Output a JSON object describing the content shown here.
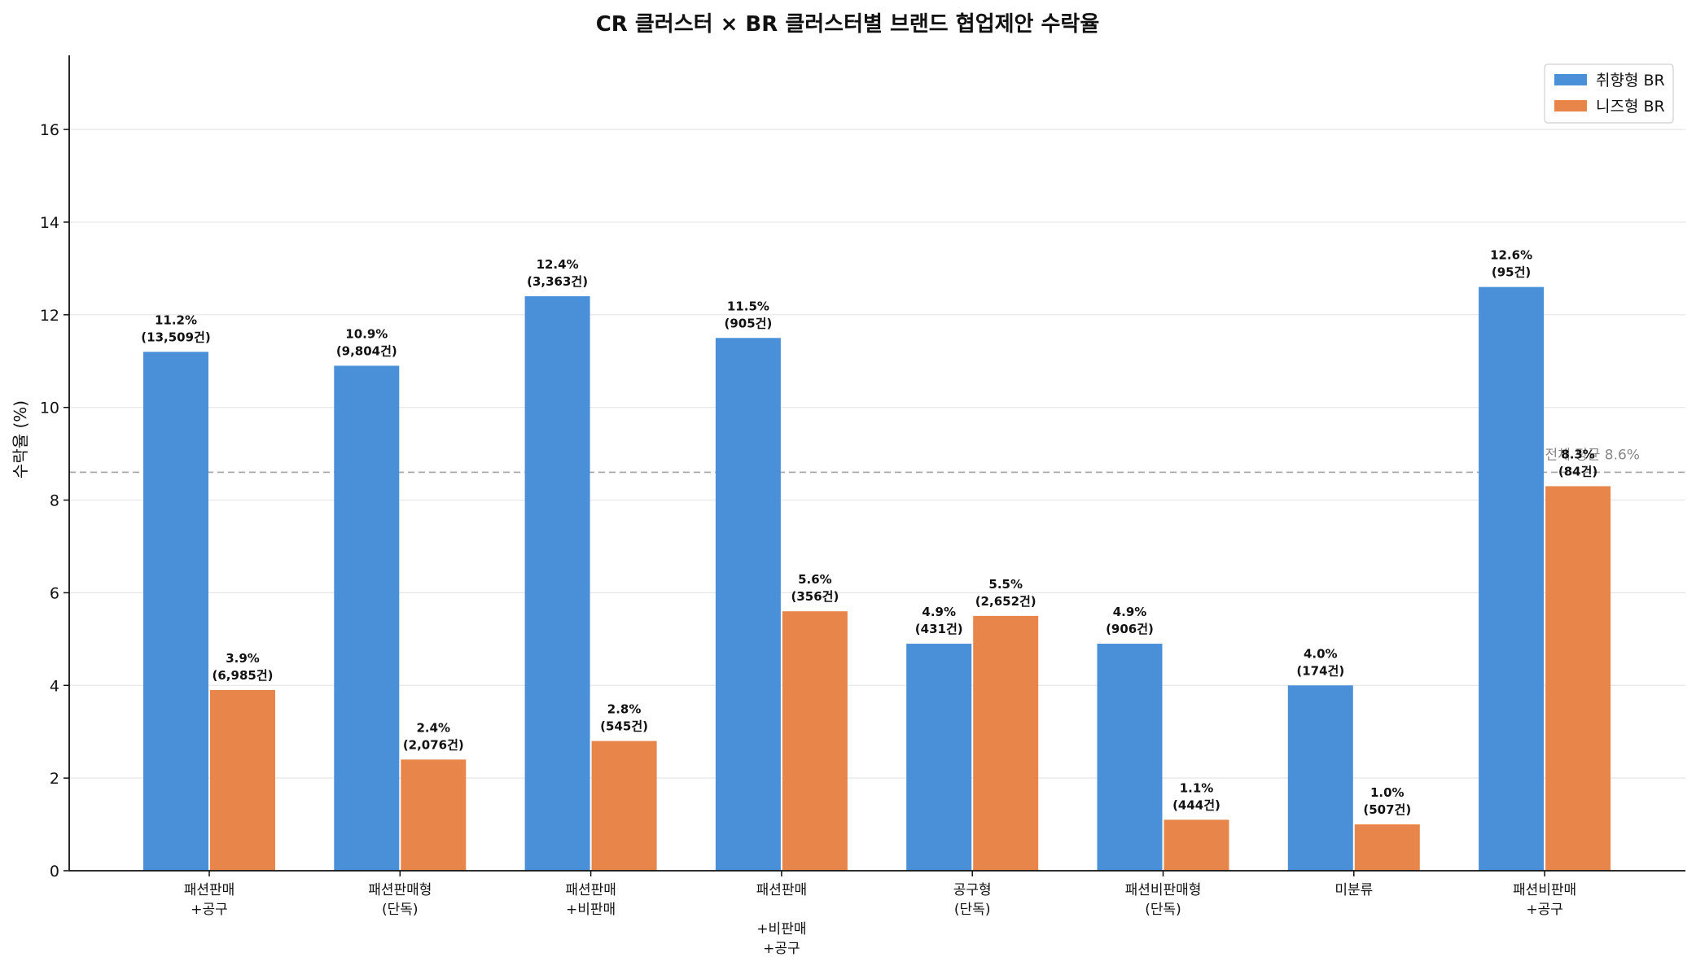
{
  "chart_data": {
    "type": "bar",
    "title": "CR 클러스터 × BR 클러스터별 브랜드 협업제안 수락율",
    "xlabel": "",
    "ylabel": "수락율 (%)",
    "ylim": [
      0,
      17.6
    ],
    "yticks": [
      0,
      2,
      4,
      6,
      8,
      10,
      12,
      14,
      16
    ],
    "grid": true,
    "legend_position": "top-right",
    "categories": [
      [
        "패션판매",
        "+공구"
      ],
      [
        "패션판매형",
        "(단독)"
      ],
      [
        "패션판매",
        "+비판매"
      ],
      [
        "패션판매",
        "",
        "+비판매",
        "+공구"
      ],
      [
        "공구형",
        "(단독)"
      ],
      [
        "패션비판매형",
        "(단독)"
      ],
      [
        "미분류"
      ],
      [
        "패션비판매",
        "+공구"
      ]
    ],
    "series": [
      {
        "name": "취향형 BR",
        "color": "#4a90d9",
        "values": [
          11.2,
          10.9,
          12.4,
          11.5,
          4.9,
          4.9,
          4.0,
          12.6
        ],
        "labels": [
          [
            "11.2%",
            "(13,509건)"
          ],
          [
            "10.9%",
            "(9,804건)"
          ],
          [
            "12.4%",
            "(3,363건)"
          ],
          [
            "11.5%",
            "(905건)"
          ],
          [
            "4.9%",
            "(431건)"
          ],
          [
            "4.9%",
            "(906건)"
          ],
          [
            "4.0%",
            "(174건)"
          ],
          [
            "12.6%",
            "(95건)"
          ]
        ]
      },
      {
        "name": "니즈형 BR",
        "color": "#e8854a",
        "values": [
          3.9,
          2.4,
          2.8,
          5.6,
          5.5,
          1.1,
          1.0,
          8.3
        ],
        "labels": [
          [
            "3.9%",
            "(6,985건)"
          ],
          [
            "2.4%",
            "(2,076건)"
          ],
          [
            "2.8%",
            "(545건)"
          ],
          [
            "5.6%",
            "(356건)"
          ],
          [
            "5.5%",
            "(2,652건)"
          ],
          [
            "1.1%",
            "(444건)"
          ],
          [
            "1.0%",
            "(507건)"
          ],
          [
            "8.3%",
            "(84건)"
          ]
        ]
      }
    ],
    "reference_line": {
      "value": 8.6,
      "label": "전체 평균 8.6%",
      "color": "#aaaaaa"
    }
  }
}
